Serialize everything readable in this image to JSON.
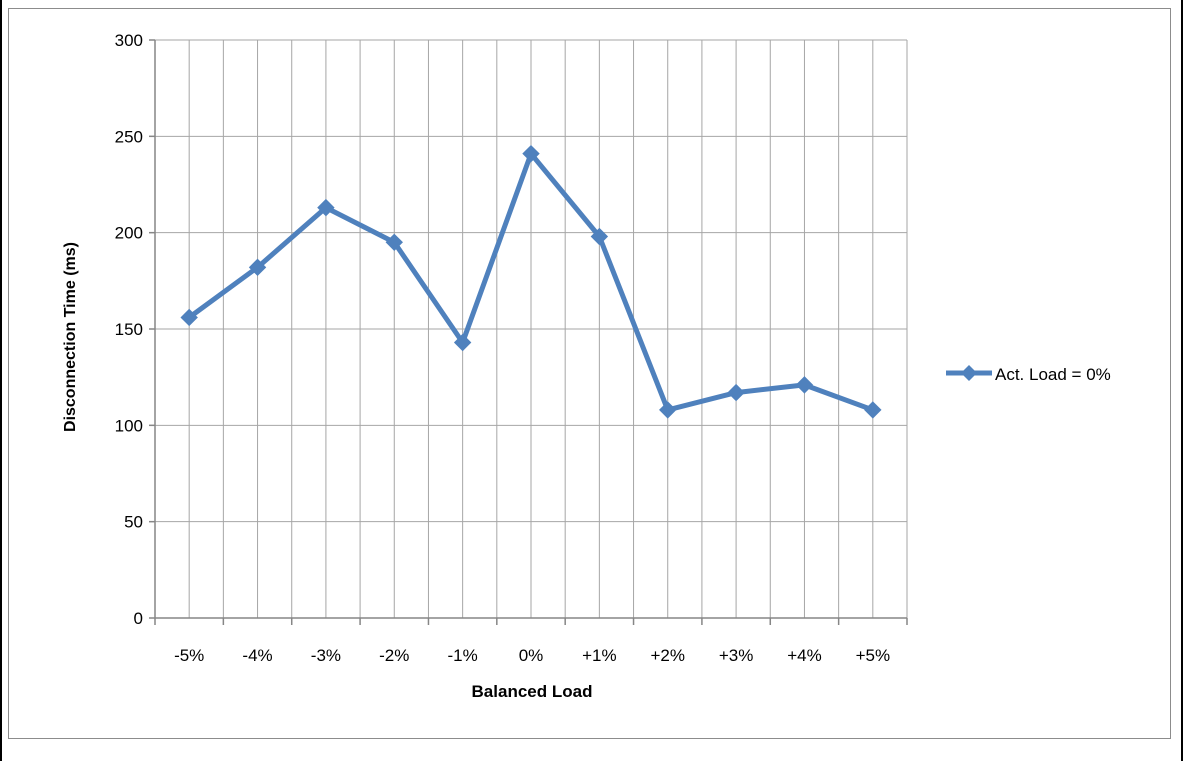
{
  "chart_data": {
    "type": "line",
    "title": "",
    "xlabel": "Balanced Load",
    "ylabel": "Disconnection Time (ms)",
    "categories": [
      "-5%",
      "-4%",
      "-3%",
      "-2%",
      "-1%",
      "0%",
      "+1%",
      "+2%",
      "+3%",
      "+4%",
      "+5%"
    ],
    "ylim": [
      0,
      300
    ],
    "yticks": [
      0,
      50,
      100,
      150,
      200,
      250,
      300
    ],
    "grid": true,
    "legend_position": "right",
    "series": [
      {
        "name": "Act. Load = 0%",
        "color": "#4f81bd",
        "marker": "diamond",
        "values": [
          156,
          182,
          213,
          195,
          143,
          241,
          198,
          108,
          117,
          121,
          108
        ]
      }
    ]
  }
}
